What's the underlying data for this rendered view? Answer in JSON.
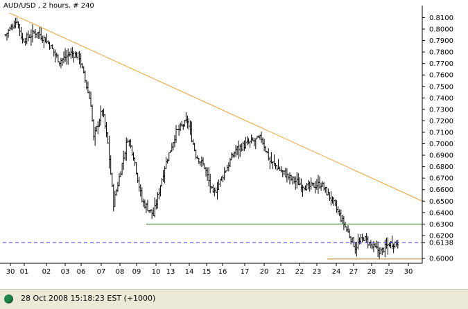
{
  "chart_data": {
    "type": "ohlc",
    "title": "AUD/USD , 2 hours, # 240",
    "ylim": [
      0.5925,
      0.815
    ],
    "y_ticks": [
      "0.8100",
      "0.8000",
      "0.7900",
      "0.7800",
      "0.7700",
      "0.7600",
      "0.7500",
      "0.7400",
      "0.7300",
      "0.7200",
      "0.7100",
      "0.7000",
      "0.6900",
      "0.6800",
      "0.6700",
      "0.6600",
      "0.6500",
      "0.6400",
      "0.6300",
      "0.6200",
      "0.6000"
    ],
    "x_ticks": [
      "30",
      "01",
      "02",
      "03",
      "06",
      "07",
      "08",
      "09",
      "10",
      "13",
      "14",
      "15",
      "16",
      "17",
      "20",
      "21",
      "22",
      "23",
      "24",
      "27",
      "28",
      "29",
      "30"
    ],
    "current_price_label": "0.6138",
    "current_price": 0.6138,
    "trendline": {
      "start_bar": 0,
      "start_price": 0.814,
      "end_bar": 240,
      "end_price": 0.65
    },
    "support_line": {
      "start_bar": 76,
      "end_bar": 240,
      "price": 0.63
    },
    "bottom_line": {
      "start_bar": 176,
      "end_bar": 240,
      "price": 0.5995
    },
    "series_keypoints": [
      [
        0,
        0.795
      ],
      [
        8,
        0.808
      ],
      [
        12,
        0.79
      ],
      [
        22,
        0.798
      ],
      [
        30,
        0.788
      ],
      [
        38,
        0.772
      ],
      [
        46,
        0.779
      ],
      [
        52,
        0.776
      ],
      [
        54,
        0.765
      ],
      [
        60,
        0.735
      ],
      [
        62,
        0.705
      ],
      [
        68,
        0.73
      ],
      [
        72,
        0.7
      ],
      [
        76,
        0.648
      ],
      [
        86,
        0.705
      ],
      [
        90,
        0.69
      ],
      [
        96,
        0.65
      ],
      [
        104,
        0.638
      ],
      [
        112,
        0.68
      ],
      [
        120,
        0.71
      ],
      [
        128,
        0.72
      ],
      [
        134,
        0.69
      ],
      [
        140,
        0.68
      ],
      [
        146,
        0.655
      ],
      [
        154,
        0.675
      ],
      [
        162,
        0.695
      ],
      [
        170,
        0.7
      ],
      [
        180,
        0.705
      ],
      [
        186,
        0.685
      ],
      [
        200,
        0.67
      ],
      [
        212,
        0.662
      ],
      [
        222,
        0.665
      ],
      [
        230,
        0.65
      ],
      [
        238,
        0.63
      ],
      [
        246,
        0.61
      ],
      [
        252,
        0.618
      ],
      [
        258,
        0.61
      ],
      [
        264,
        0.606
      ],
      [
        270,
        0.613
      ],
      [
        276,
        0.6138
      ]
    ]
  },
  "status": {
    "timestamp": "28 Oct 2008 15:18:23 EST (+1000)"
  }
}
